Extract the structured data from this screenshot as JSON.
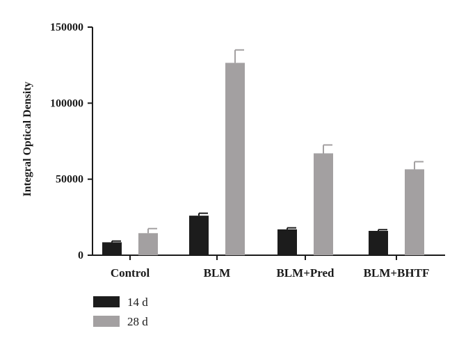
{
  "chart_data": {
    "type": "bar",
    "categories": [
      "Control",
      "BLM",
      "BLM+Pred",
      "BLM+BHTF"
    ],
    "series": [
      {
        "name": "14 d",
        "color": "#1c1c1c",
        "values": [
          8500,
          26000,
          17000,
          16000
        ],
        "errors": [
          800,
          1600,
          1000,
          800
        ]
      },
      {
        "name": "28 d",
        "color": "#a3a0a1",
        "values": [
          14500,
          126500,
          67000,
          56500
        ],
        "errors": [
          3000,
          8500,
          5500,
          5000
        ]
      }
    ],
    "title": "",
    "xlabel": "",
    "ylabel": "Integral Optical Density",
    "ylim": [
      0,
      150000
    ],
    "yticks": [
      "0",
      "50000",
      "100000",
      "150000"
    ],
    "ytick_values": [
      0,
      50000,
      100000,
      150000
    ],
    "grid": false,
    "legend_position": "bottom-left"
  }
}
